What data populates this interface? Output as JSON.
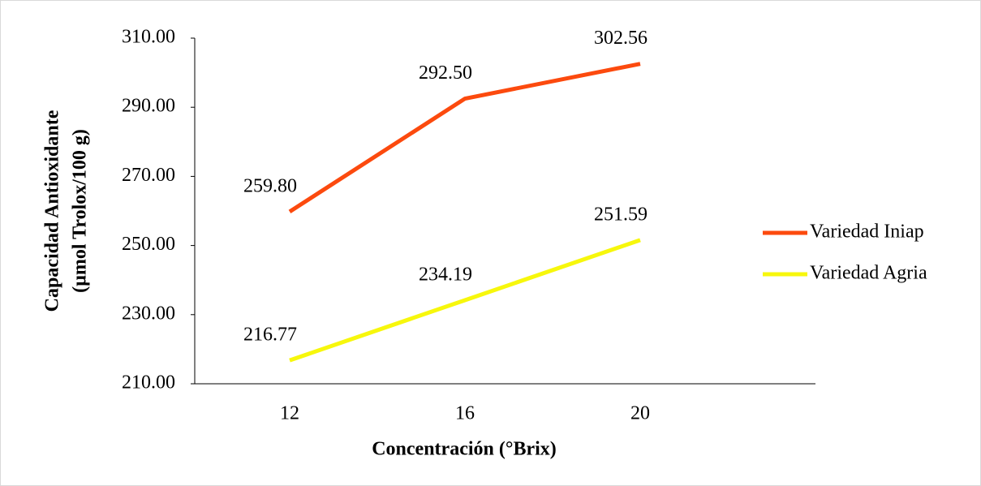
{
  "chart_data": {
    "type": "line",
    "x_label": "Concentración (°Brix)",
    "y_label": [
      "Capacidad Antioxidante",
      "(µmol Trolox/100 g)"
    ],
    "categories": [
      "12",
      "16",
      "20"
    ],
    "series": [
      {
        "name": "Variedad Iniap",
        "color": "#fc4a0e",
        "values": [
          259.8,
          292.5,
          302.56
        ],
        "value_labels": [
          "259.80",
          "292.50",
          "302.56"
        ]
      },
      {
        "name": "Variedad Agria",
        "color": "#f7f70c",
        "values": [
          216.77,
          234.19,
          251.59
        ],
        "value_labels": [
          "216.77",
          "234.19",
          "251.59"
        ]
      }
    ],
    "ylim": [
      210,
      310
    ],
    "yticks": [
      {
        "value": 210,
        "label": "210.00"
      },
      {
        "value": 230,
        "label": "230.00"
      },
      {
        "value": 250,
        "label": "250.00"
      },
      {
        "value": 270,
        "label": "270.00"
      },
      {
        "value": 290,
        "label": "290.00"
      },
      {
        "value": 310,
        "label": "310.00"
      }
    ],
    "grid": false,
    "legend": "right"
  }
}
